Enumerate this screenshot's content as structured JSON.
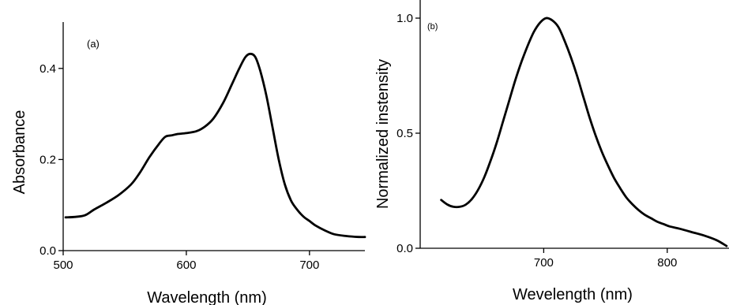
{
  "chart_data": [
    {
      "type": "line",
      "panel_label": "(a)",
      "title": "",
      "xlabel": "Wavelength (nm)",
      "ylabel": "Absorbance",
      "xlim": [
        500,
        745
      ],
      "ylim": [
        0.0,
        0.5
      ],
      "x_ticks": [
        500,
        600,
        700
      ],
      "x_tick_labels": [
        "500",
        "600",
        "700"
      ],
      "y_ticks": [
        0.0,
        0.2,
        0.4
      ],
      "y_tick_labels": [
        "0.0",
        "0.2",
        "0.4"
      ],
      "grid": false,
      "series": [
        {
          "x": [
            502,
            510,
            518,
            525,
            535,
            545,
            555,
            562,
            570,
            578,
            583,
            588,
            593,
            600,
            608,
            615,
            622,
            630,
            637,
            643,
            648,
            652,
            656,
            660,
            665,
            670,
            675,
            680,
            685,
            690,
            695,
            700,
            705,
            712,
            720,
            730,
            740,
            745
          ],
          "y": [
            0.073,
            0.074,
            0.078,
            0.09,
            0.105,
            0.122,
            0.145,
            0.17,
            0.205,
            0.235,
            0.25,
            0.253,
            0.256,
            0.258,
            0.262,
            0.272,
            0.29,
            0.325,
            0.365,
            0.4,
            0.425,
            0.432,
            0.425,
            0.395,
            0.34,
            0.27,
            0.2,
            0.145,
            0.11,
            0.09,
            0.075,
            0.065,
            0.055,
            0.045,
            0.036,
            0.032,
            0.03,
            0.03
          ]
        }
      ]
    },
    {
      "type": "line",
      "panel_label": "(b)",
      "title": "",
      "xlabel": "Wevelength (nm)",
      "ylabel": "Normalized instensity",
      "xlim": [
        600,
        850
      ],
      "ylim": [
        0.0,
        1.0
      ],
      "x_ticks": [
        700,
        800
      ],
      "x_tick_labels": [
        "700",
        "800"
      ],
      "y_ticks": [
        0.0,
        0.5,
        1.0
      ],
      "y_tick_labels": [
        "0.0",
        "0.5",
        "1.0"
      ],
      "grid": false,
      "series": [
        {
          "x": [
            617,
            622,
            627,
            632,
            637,
            642,
            647,
            652,
            657,
            662,
            667,
            672,
            677,
            682,
            687,
            692,
            697,
            702,
            707,
            712,
            717,
            722,
            727,
            732,
            737,
            742,
            747,
            752,
            757,
            762,
            767,
            772,
            777,
            782,
            787,
            792,
            797,
            802,
            810,
            820,
            830,
            840,
            848
          ],
          "y": [
            0.21,
            0.19,
            0.18,
            0.18,
            0.19,
            0.215,
            0.255,
            0.31,
            0.38,
            0.46,
            0.55,
            0.64,
            0.73,
            0.81,
            0.88,
            0.94,
            0.98,
            1.0,
            0.99,
            0.96,
            0.9,
            0.83,
            0.75,
            0.66,
            0.57,
            0.49,
            0.42,
            0.36,
            0.305,
            0.26,
            0.22,
            0.19,
            0.165,
            0.145,
            0.13,
            0.115,
            0.105,
            0.095,
            0.085,
            0.07,
            0.055,
            0.035,
            0.01
          ]
        }
      ]
    }
  ]
}
